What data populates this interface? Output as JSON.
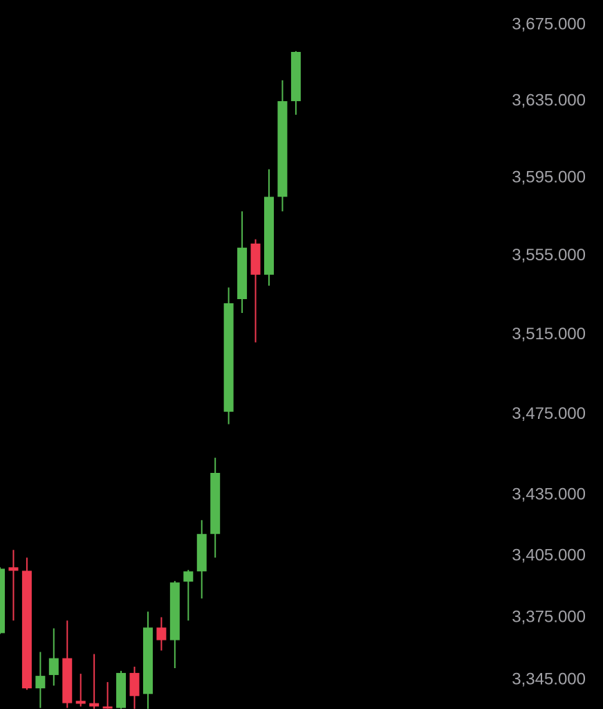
{
  "chart_data": {
    "type": "candlestick",
    "log_scale": true,
    "grid": false,
    "up_color": "#53b94f",
    "down_color": "#f0394f",
    "ylim": [
      3331.1,
      3688.2
    ],
    "yticks": [
      {
        "value": 3345,
        "label": "3,345.000"
      },
      {
        "value": 3375,
        "label": "3,375.000"
      },
      {
        "value": 3405,
        "label": "3,405.000"
      },
      {
        "value": 3435,
        "label": "3,435.000"
      },
      {
        "value": 3475,
        "label": "3,475.000"
      },
      {
        "value": 3515,
        "label": "3,515.000"
      },
      {
        "value": 3555,
        "label": "3,555.000"
      },
      {
        "value": 3595,
        "label": "3,595.000"
      },
      {
        "value": 3635,
        "label": "3,635.000"
      },
      {
        "value": 3675,
        "label": "3,675.000"
      }
    ],
    "open": [
      3367.6,
      3399.6,
      3397.9,
      3341.0,
      3347.4,
      3355.5,
      3335.0,
      3333.9,
      3332.3,
      3331.6,
      3348.4,
      3338.3,
      3370.3,
      3364.2,
      3392.6,
      3397.6,
      3415.9,
      3476.4,
      3533.1,
      3561.4,
      3545.5,
      3585.4,
      3635.0
    ],
    "high": [
      3399.6,
      3408.1,
      3404.3,
      3358.5,
      3369.9,
      3373.7,
      3348.0,
      3357.5,
      3344.0,
      3349.4,
      3351.4,
      3378.0,
      3375.3,
      3392.9,
      3398.3,
      3422.7,
      3453.5,
      3539.0,
      3577.9,
      3563.6,
      3599.6,
      3645.9,
      3661.2
    ],
    "low": [
      3367.2,
      3373.7,
      3340.3,
      3331.6,
      3342.3,
      3331.6,
      3332.3,
      3331.2,
      3331.2,
      3331.2,
      3331.2,
      3331.2,
      3359.2,
      3350.7,
      3373.7,
      3384.4,
      3404.3,
      3470.2,
      3526.1,
      3511.2,
      3539.9,
      3577.9,
      3627.9
    ],
    "close": [
      3398.9,
      3397.9,
      3341.0,
      3347.0,
      3355.5,
      3333.9,
      3333.6,
      3332.3,
      3331.3,
      3348.4,
      3337.3,
      3370.3,
      3364.2,
      3392.2,
      3397.6,
      3415.9,
      3446.0,
      3531.0,
      3559.3,
      3545.5,
      3585.4,
      3635.0,
      3660.8
    ]
  }
}
